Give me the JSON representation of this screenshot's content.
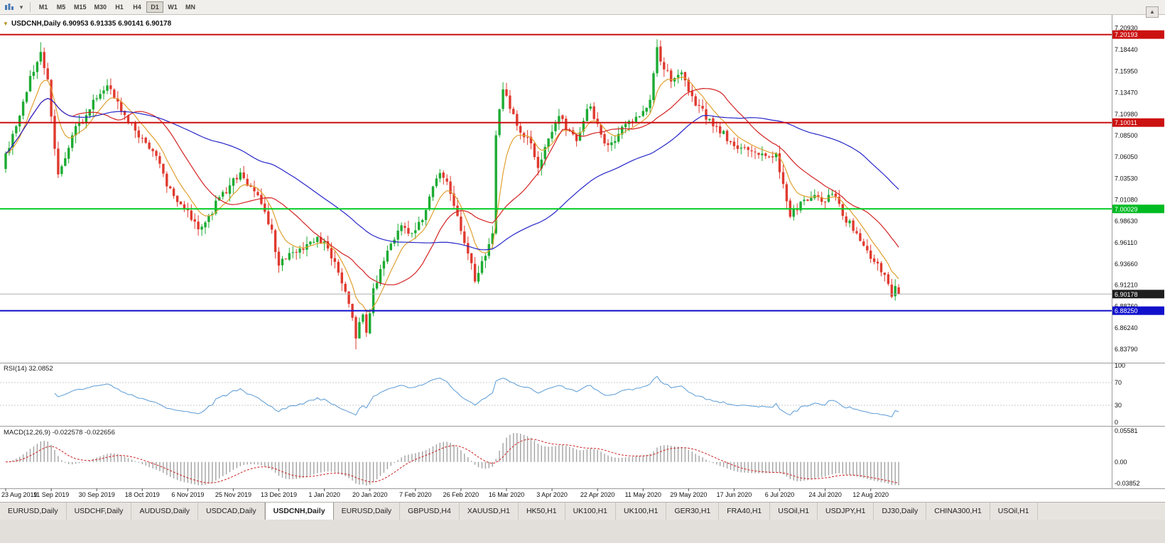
{
  "icons": {
    "chevron_down": "▾",
    "scroll_up": "▲",
    "dropdown_marker": "▼"
  },
  "toolbar": {
    "timeframes": [
      "M1",
      "M5",
      "M15",
      "M30",
      "H1",
      "H4",
      "D1",
      "W1",
      "MN"
    ],
    "active": "D1"
  },
  "chart": {
    "header": {
      "symbol": "USDCNH,Daily",
      "o": "6.90953",
      "h": "6.91335",
      "l": "6.90141",
      "c": "6.90178"
    }
  },
  "chart_data": {
    "type": "candlestick-with-indicators",
    "symbol": "USDCNH",
    "timeframe": "Daily",
    "bars": 256,
    "last": {
      "open": 6.90953,
      "high": 6.91335,
      "low": 6.90141,
      "close": 6.90178
    },
    "current_price": 6.90178,
    "anchors": [
      [
        0,
        7.062
      ],
      [
        2,
        7.088
      ],
      [
        4,
        7.105
      ],
      [
        7,
        7.152
      ],
      [
        10,
        7.182
      ],
      [
        12,
        7.15
      ],
      [
        14,
        7.068
      ],
      [
        15,
        7.04
      ],
      [
        17,
        7.062
      ],
      [
        20,
        7.092
      ],
      [
        23,
        7.108
      ],
      [
        26,
        7.13
      ],
      [
        29,
        7.146
      ],
      [
        31,
        7.128
      ],
      [
        34,
        7.11
      ],
      [
        37,
        7.092
      ],
      [
        40,
        7.078
      ],
      [
        43,
        7.058
      ],
      [
        46,
        7.028
      ],
      [
        49,
        7.01
      ],
      [
        52,
        6.996
      ],
      [
        55,
        6.978
      ],
      [
        58,
        6.992
      ],
      [
        61,
        7.012
      ],
      [
        64,
        7.028
      ],
      [
        67,
        7.042
      ],
      [
        70,
        7.026
      ],
      [
        73,
        7.008
      ],
      [
        76,
        6.975
      ],
      [
        78,
        6.932
      ],
      [
        80,
        6.945
      ],
      [
        83,
        6.952
      ],
      [
        86,
        6.96
      ],
      [
        89,
        6.965
      ],
      [
        91,
        6.96
      ],
      [
        93,
        6.945
      ],
      [
        95,
        6.928
      ],
      [
        97,
        6.905
      ],
      [
        99,
        6.872
      ],
      [
        100,
        6.852
      ],
      [
        102,
        6.878
      ],
      [
        103,
        6.856
      ],
      [
        105,
        6.905
      ],
      [
        107,
        6.932
      ],
      [
        110,
        6.958
      ],
      [
        113,
        6.978
      ],
      [
        116,
        6.968
      ],
      [
        119,
        6.988
      ],
      [
        122,
        7.022
      ],
      [
        124,
        7.044
      ],
      [
        126,
        7.03
      ],
      [
        128,
        7.006
      ],
      [
        130,
        6.978
      ],
      [
        132,
        6.948
      ],
      [
        134,
        6.92
      ],
      [
        136,
        6.94
      ],
      [
        138,
        6.958
      ],
      [
        139,
        6.972
      ],
      [
        140,
        7.088
      ],
      [
        142,
        7.142
      ],
      [
        144,
        7.118
      ],
      [
        146,
        7.098
      ],
      [
        149,
        7.082
      ],
      [
        152,
        7.052
      ],
      [
        154,
        7.068
      ],
      [
        156,
        7.092
      ],
      [
        158,
        7.112
      ],
      [
        160,
        7.096
      ],
      [
        163,
        7.082
      ],
      [
        165,
        7.102
      ],
      [
        167,
        7.122
      ],
      [
        169,
        7.095
      ],
      [
        172,
        7.072
      ],
      [
        175,
        7.088
      ],
      [
        178,
        7.098
      ],
      [
        181,
        7.108
      ],
      [
        184,
        7.128
      ],
      [
        186,
        7.185
      ],
      [
        188,
        7.16
      ],
      [
        191,
        7.148
      ],
      [
        193,
        7.155
      ],
      [
        196,
        7.128
      ],
      [
        199,
        7.112
      ],
      [
        202,
        7.096
      ],
      [
        205,
        7.086
      ],
      [
        208,
        7.076
      ],
      [
        211,
        7.068
      ],
      [
        214,
        7.062
      ],
      [
        217,
        7.066
      ],
      [
        220,
        7.062
      ],
      [
        222,
        7.03
      ],
      [
        224,
        6.995
      ],
      [
        227,
        7.006
      ],
      [
        230,
        7.016
      ],
      [
        233,
        7.008
      ],
      [
        236,
        7.02
      ],
      [
        238,
        7.005
      ],
      [
        240,
        6.988
      ],
      [
        243,
        6.972
      ],
      [
        246,
        6.952
      ],
      [
        248,
        6.94
      ],
      [
        250,
        6.93
      ],
      [
        252,
        6.914
      ],
      [
        253,
        6.898
      ],
      [
        254,
        6.91
      ],
      [
        255,
        6.90178
      ]
    ],
    "key_extremes": [
      {
        "bar": 10,
        "high": 7.193
      },
      {
        "bar": 100,
        "low": 6.8379
      },
      {
        "bar": 186,
        "high": 7.1964
      }
    ],
    "colors": {
      "up": "#1cab33",
      "down": "#e03a2f"
    },
    "moving_averages": [
      {
        "period": 8,
        "method": "ema",
        "color": "#e0a030"
      },
      {
        "period": 20,
        "method": "sma",
        "color": "#d42222"
      },
      {
        "period": 60,
        "method": "sma",
        "color": "#2626c9"
      }
    ],
    "hlines": [
      {
        "price": 7.20193,
        "label": "7.20193",
        "color": "#cc1111",
        "width": 2
      },
      {
        "price": 7.10011,
        "label": "7.10011",
        "color": "#cc1111",
        "width": 2
      },
      {
        "price": 7.00029,
        "label": "7.00029",
        "color": "#00cc22",
        "width": 2,
        "badge_color": "#00bb22"
      },
      {
        "price": 6.8825,
        "label": "6.88250",
        "color": "#1111cc",
        "width": 2
      }
    ],
    "price_axis": {
      "ticks": [
        "7.20930",
        "7.18440",
        "7.15950",
        "7.13470",
        "7.10980",
        "7.08500",
        "7.06050",
        "7.03530",
        "7.01080",
        "6.98630",
        "6.96110",
        "6.93660",
        "6.91210",
        "6.88760",
        "6.86240",
        "6.83790"
      ]
    },
    "x_labels": [
      "23 Aug 2019",
      "11 Sep 2019",
      "30 Sep 2019",
      "18 Oct 2019",
      "6 Nov 2019",
      "25 Nov 2019",
      "13 Dec 2019",
      "1 Jan 2020",
      "20 Jan 2020",
      "7 Feb 2020",
      "26 Feb 2020",
      "16 Mar 2020",
      "3 Apr 2020",
      "22 Apr 2020",
      "11 May 2020",
      "29 May 2020",
      "17 Jun 2020",
      "6 Jul 2020",
      "24 Jul 2020",
      "12 Aug 2020"
    ],
    "rsi": {
      "label": "RSI(14)",
      "value": "32.0852",
      "period": 14,
      "levels": [
        70,
        30
      ],
      "axis_labels": [
        "100",
        "70",
        "30",
        "0"
      ],
      "color": "#5b9bd5"
    },
    "macd": {
      "label": "MACD(12,26,9)",
      "values": "-0.022578 -0.022656",
      "fast": 12,
      "slow": 26,
      "signal": 9,
      "axis_labels": [
        "0.05581",
        "0.00",
        "-0.03852"
      ],
      "hist_color": "#a2a2a2",
      "signal_color": "#cc2222"
    }
  },
  "tabs": {
    "items": [
      "EURUSD,Daily",
      "USDCHF,Daily",
      "AUDUSD,Daily",
      "USDCAD,Daily",
      "USDCNH,Daily",
      "EURUSD,Daily",
      "GBPUSD,H4",
      "XAUUSD,H1",
      "HK50,H1",
      "UK100,H1",
      "UK100,H1",
      "GER30,H1",
      "FRA40,H1",
      "USOil,H1",
      "USDJPY,H1",
      "DJ30,Daily",
      "CHINA300,H1",
      "USOil,H1"
    ],
    "active_index": 4
  }
}
